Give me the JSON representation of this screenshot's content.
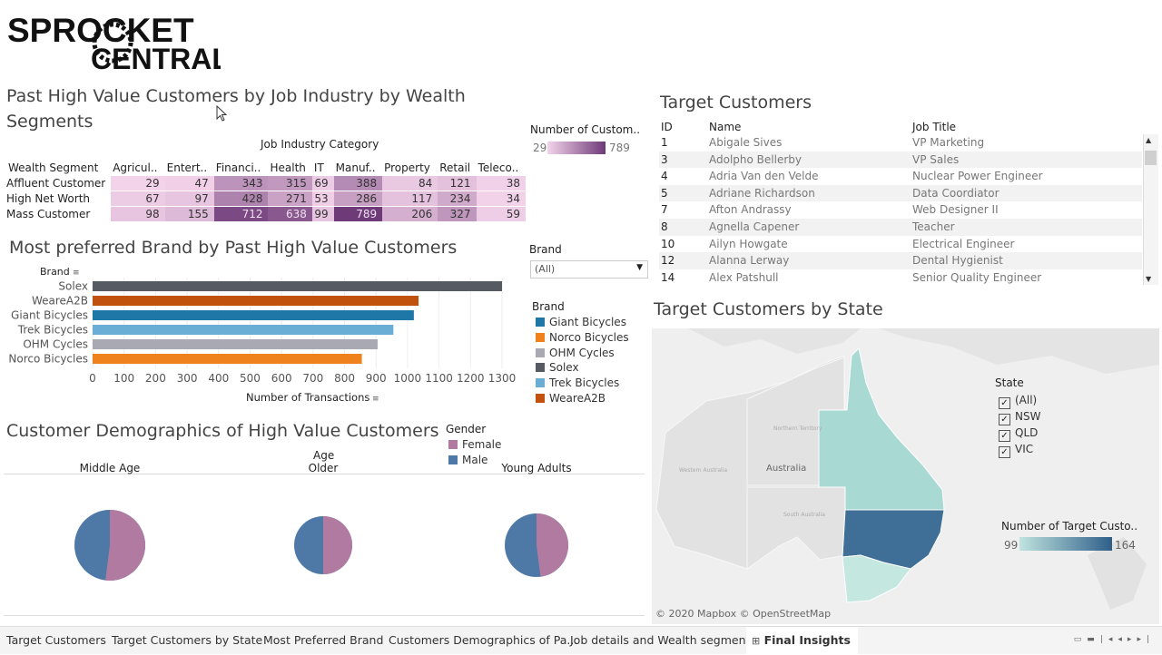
{
  "logo": {
    "line1": "SPROCKET",
    "line2": "CENTRAL"
  },
  "heatmap": {
    "title": "Past High Value Customers by  Job Industry by Wealth Segments",
    "column_group": "Job Industry Category",
    "row_header": "Wealth Segment",
    "columns": [
      "Agricul..",
      "Entert..",
      "Financi..",
      "Health",
      "IT",
      "Manuf..",
      "Property",
      "Retail",
      "Teleco.."
    ],
    "rows": [
      {
        "label": "Affluent Customer",
        "values": [
          29,
          47,
          343,
          315,
          69,
          388,
          84,
          121,
          38
        ]
      },
      {
        "label": "High Net Worth",
        "values": [
          67,
          97,
          428,
          271,
          53,
          286,
          117,
          234,
          34
        ]
      },
      {
        "label": "Mass Customer",
        "values": [
          98,
          155,
          712,
          638,
          99,
          789,
          206,
          327,
          59
        ]
      }
    ],
    "legend": {
      "title": "Number of Custom..",
      "min_label": "29",
      "max_label": "789",
      "min": 29,
      "max": 789,
      "color_low": "#f3d3ea",
      "color_high": "#6e3a78"
    }
  },
  "brand_chart": {
    "title": "Most preferred Brand by Past High Value Customers",
    "filter": {
      "label": "Brand",
      "value": "(All)"
    },
    "legend_title": "Brand",
    "legend": [
      {
        "name": "Giant Bicycles",
        "color": "#1f77a8"
      },
      {
        "name": "Norco Bicycles",
        "color": "#f0821e"
      },
      {
        "name": "OHM Cycles",
        "color": "#a9a9b3"
      },
      {
        "name": "Solex",
        "color": "#555a63"
      },
      {
        "name": "Trek Bicycles",
        "color": "#6aaed6"
      },
      {
        "name": "WeareA2B",
        "color": "#c0520e"
      }
    ]
  },
  "chart_data": {
    "type": "bar",
    "orientation": "horizontal",
    "title": "Most preferred Brand by Past High Value Customers",
    "ylabel": "Brand",
    "xlabel": "Number of Transactions",
    "xlim": [
      0,
      1300
    ],
    "xticks": [
      "0",
      "100",
      "200",
      "300",
      "400",
      "500",
      "600",
      "700",
      "800",
      "900",
      "1000",
      "1100",
      "1200",
      "1300"
    ],
    "categories": [
      "Solex",
      "WeareA2B",
      "Giant Bicycles",
      "Trek Bicycles",
      "OHM Cycles",
      "Norco Bicycles"
    ],
    "values": [
      1300,
      1035,
      1020,
      955,
      905,
      855
    ],
    "colors": [
      "#555a63",
      "#c0520e",
      "#1f77a8",
      "#6aaed6",
      "#a9a9b3",
      "#f0821e"
    ]
  },
  "demographics": {
    "title": "Customer Demographics of High Value Customers",
    "age_header": "Age",
    "gender_legend_title": "Gender",
    "gender_legend": [
      {
        "name": "Female",
        "color": "#b07aa1"
      },
      {
        "name": "Male",
        "color": "#4e79a7"
      }
    ],
    "pies": [
      {
        "label": "Middle Age",
        "female_share": 0.52
      },
      {
        "label": "Older",
        "female_share": 0.5
      },
      {
        "label": "Young Adults",
        "female_share": 0.48
      }
    ]
  },
  "target_customers": {
    "title": "Target Customers",
    "headers": {
      "id": "ID",
      "name": "Name",
      "job": "Job Title"
    },
    "rows": [
      {
        "id": "1",
        "name": "Abigale Sives",
        "job": "VP Marketing"
      },
      {
        "id": "3",
        "name": "Adolpho Bellerby",
        "job": "VP Sales"
      },
      {
        "id": "4",
        "name": "Adria Van den Velde",
        "job": "Nuclear Power Engineer"
      },
      {
        "id": "5",
        "name": "Adriane Richardson",
        "job": "Data Coordiator"
      },
      {
        "id": "7",
        "name": "Afton Andrassy",
        "job": "Web Designer II"
      },
      {
        "id": "8",
        "name": "Agnella Capener",
        "job": "Teacher"
      },
      {
        "id": "10",
        "name": "Ailyn Howgate",
        "job": "Electrical Engineer"
      },
      {
        "id": "12",
        "name": "Alanna Lerway",
        "job": "Dental Hygienist"
      },
      {
        "id": "14",
        "name": "Alex Patshull",
        "job": "Senior Quality Engineer"
      }
    ]
  },
  "map": {
    "title": "Target Customers by State",
    "country_label": "Australia",
    "region_labels": {
      "nt": "Northern Territory",
      "wa": "Western Australia",
      "sa": "South Australia"
    },
    "attribution": "© 2020 Mapbox © OpenStreetMap",
    "state_filter_title": "State",
    "state_options": [
      {
        "label": "(All)",
        "checked": true
      },
      {
        "label": "NSW",
        "checked": true
      },
      {
        "label": "QLD",
        "checked": true
      },
      {
        "label": "VIC",
        "checked": true
      }
    ],
    "color_legend": {
      "title": "Number of Target Custo..",
      "min_label": "99",
      "max_label": "164",
      "color_low": "#bfe3df",
      "color_high": "#2f5f8a"
    },
    "state_colors": {
      "QLD": "#a8d9d3",
      "NSW": "#3f6e96",
      "VIC": "#c4e8df"
    }
  },
  "tabs": [
    {
      "label": "Target Customers",
      "active": false
    },
    {
      "label": "Target Customers by State",
      "active": false
    },
    {
      "label": "Most Preferred Brand",
      "active": false
    },
    {
      "label": "Customers Demographics of Pa...",
      "active": false
    },
    {
      "label": "Job details and Wealth segments",
      "active": false
    },
    {
      "label": "Final Insights",
      "active": true
    }
  ],
  "icons": {
    "sheet": "dashboard-icon",
    "nav": [
      "first-icon",
      "prev-icon",
      "next-icon",
      "last-icon"
    ]
  }
}
